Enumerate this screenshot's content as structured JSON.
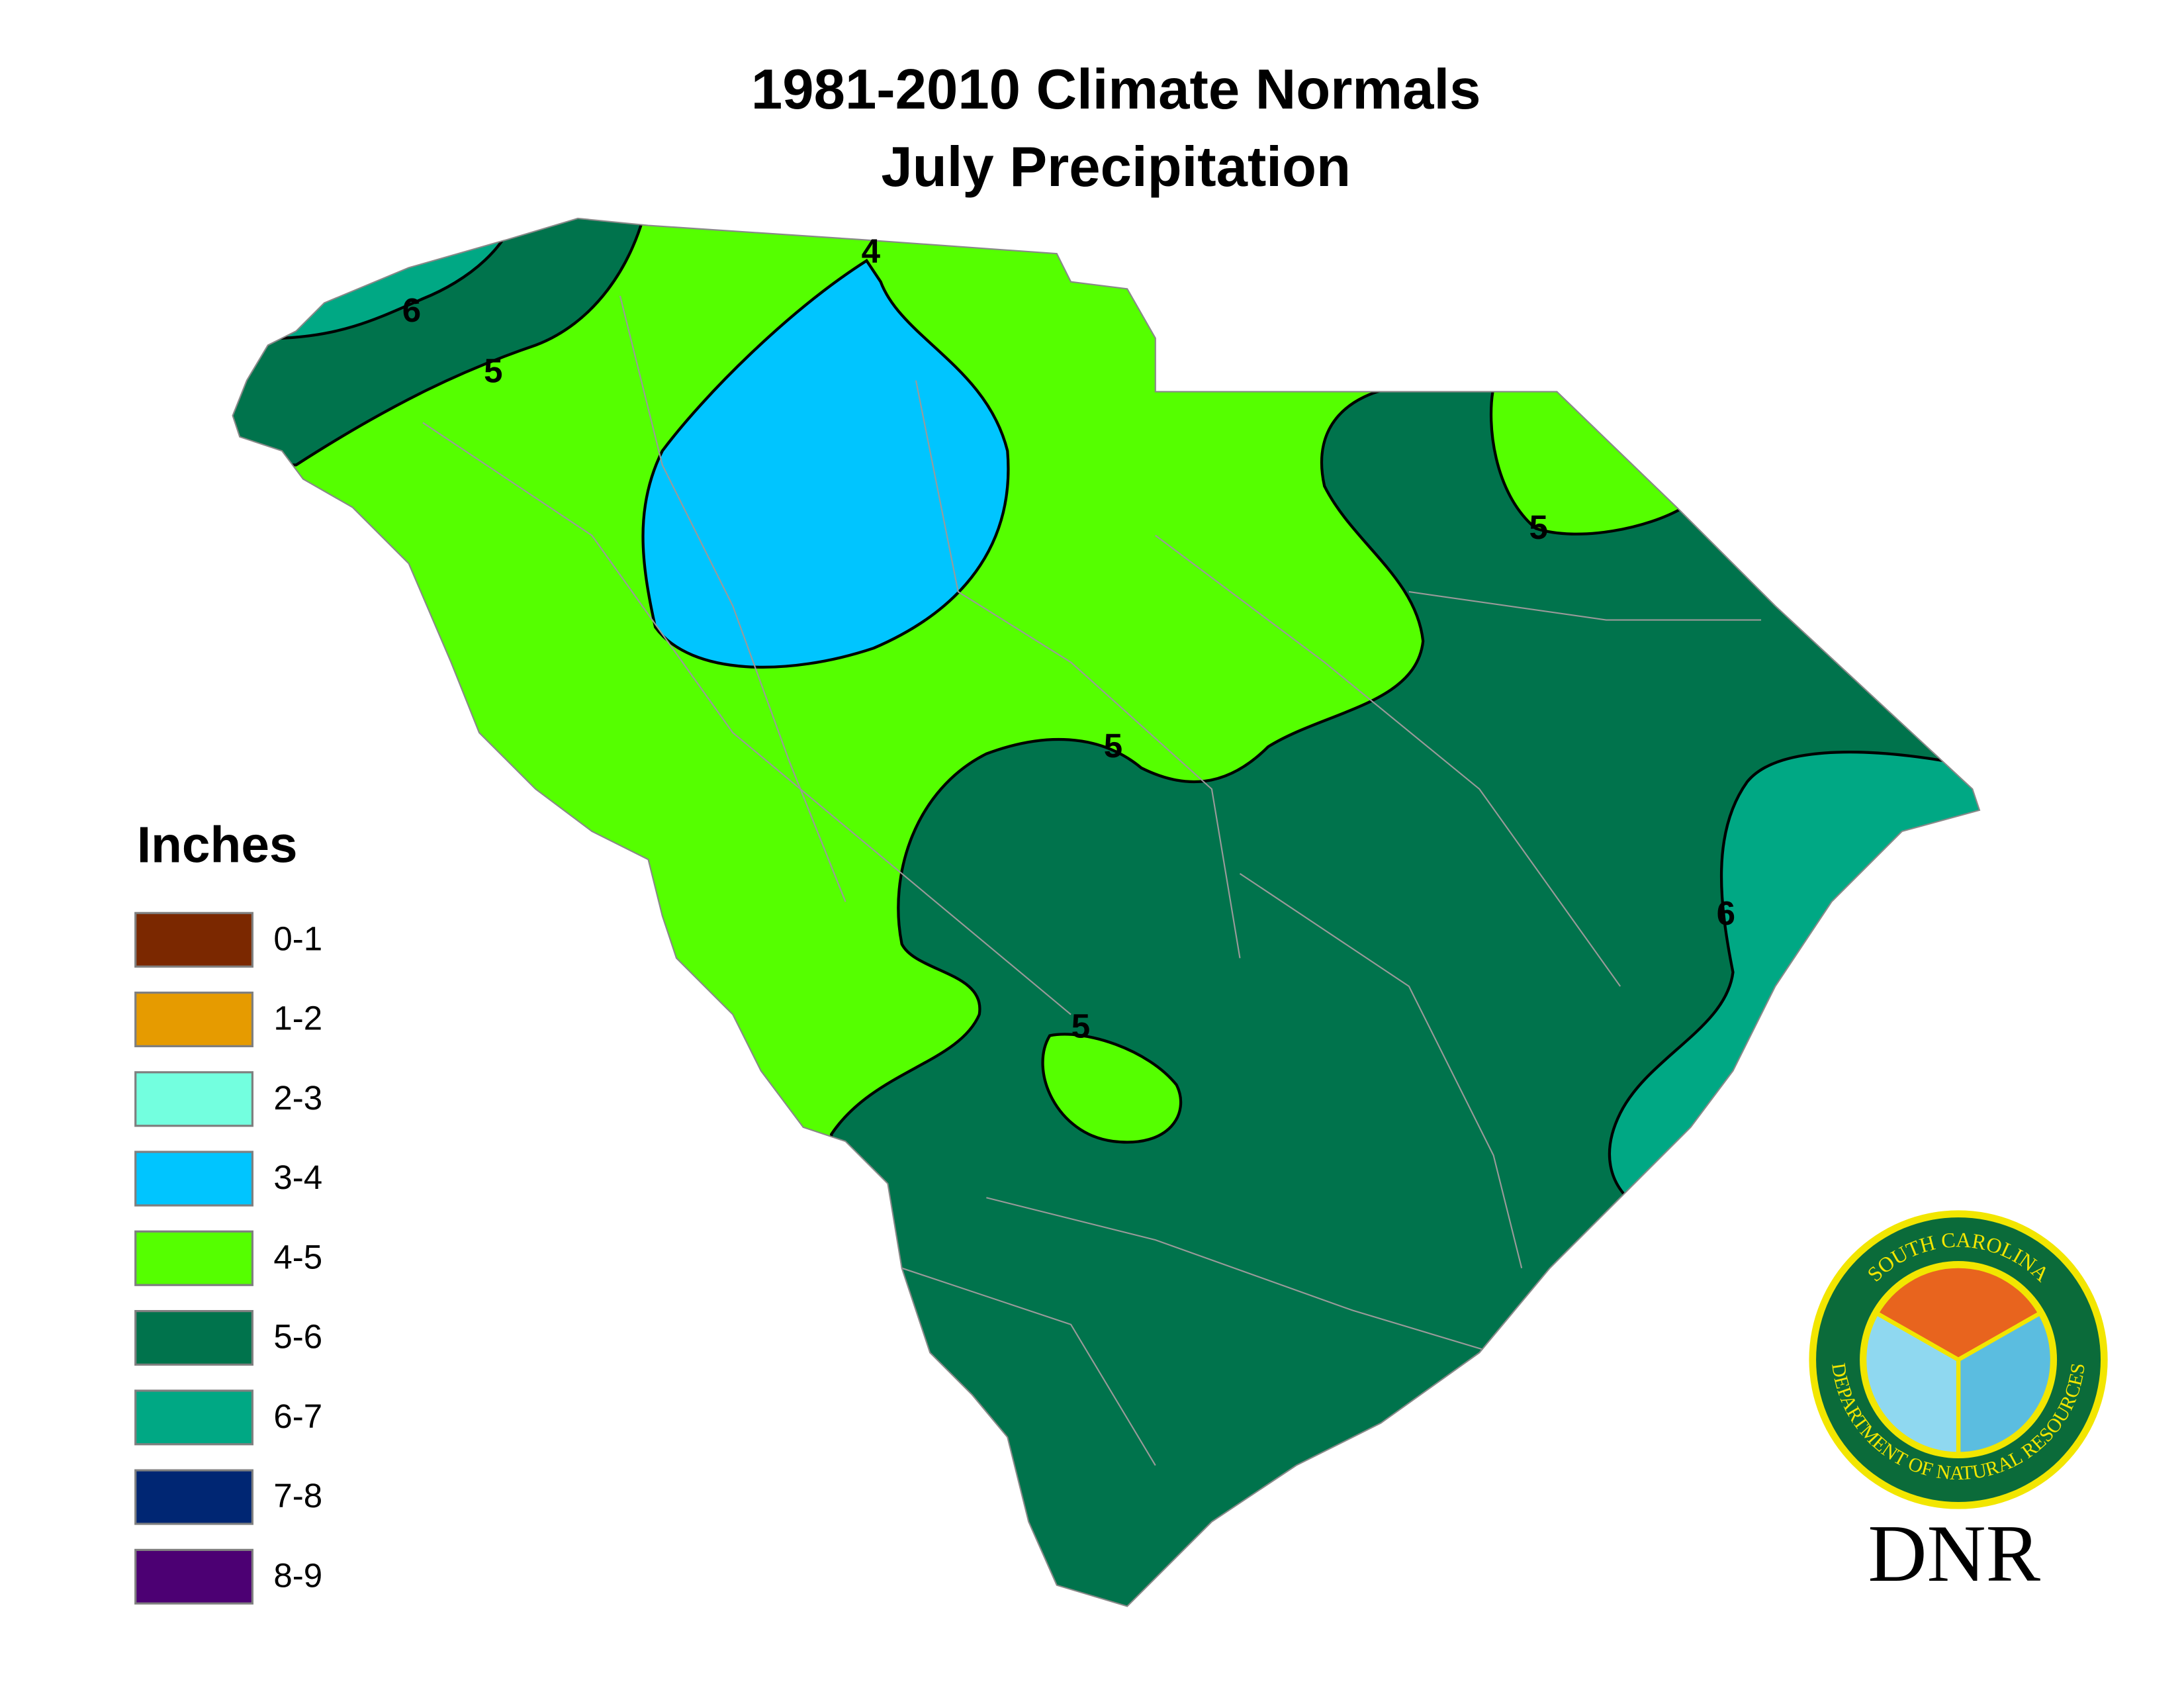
{
  "title": [
    "1981-2010 Climate Normals",
    "July Precipitation"
  ],
  "legend": {
    "title": "Inches",
    "items": [
      {
        "label": "0-1",
        "color": "#7b2800"
      },
      {
        "label": "1-2",
        "color": "#e69b00"
      },
      {
        "label": "2-3",
        "color": "#73ffdf"
      },
      {
        "label": "3-4",
        "color": "#00c5ff"
      },
      {
        "label": "4-5",
        "color": "#55ff00"
      },
      {
        "label": "5-6",
        "color": "#00734c"
      },
      {
        "label": "6-7",
        "color": "#00a884"
      },
      {
        "label": "7-8",
        "color": "#002673"
      },
      {
        "label": "8-9",
        "color": "#4c0073"
      }
    ]
  },
  "contour_labels": [
    "4",
    "6",
    "5",
    "5",
    "5",
    "6",
    "5"
  ],
  "logo": {
    "top_text": "SOUTH CAROLINA",
    "bottom_text": "DEPARTMENT OF NATURAL RESOURCES",
    "acronym": "DNR"
  }
}
